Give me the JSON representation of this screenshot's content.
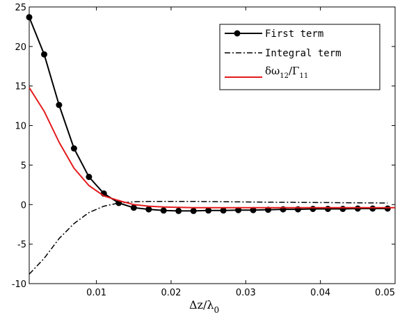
{
  "chart_data": {
    "type": "line",
    "xlim": [
      0.001,
      0.05
    ],
    "ylim": [
      -10,
      25
    ],
    "grid": false,
    "legend_position": "top-right",
    "xlabel": {
      "main": "Δz/λ",
      "sub": "0"
    },
    "x_ticks": [
      0.01,
      0.02,
      0.03,
      0.04,
      0.05
    ],
    "x_tick_labels": [
      "0.01",
      "0.02",
      "0.03",
      "0.04",
      "0.05"
    ],
    "y_ticks": [
      -10,
      -5,
      0,
      5,
      10,
      15,
      20,
      25
    ],
    "y_tick_labels": [
      "-10",
      "-5",
      "0",
      "5",
      "10",
      "15",
      "20",
      "25"
    ],
    "series": [
      {
        "name": "First term",
        "color": "#000000",
        "style": "solid-dot",
        "x": [
          0.001,
          0.003,
          0.005,
          0.007,
          0.009,
          0.011,
          0.013,
          0.015,
          0.017,
          0.019,
          0.021,
          0.023,
          0.025,
          0.027,
          0.029,
          0.031,
          0.033,
          0.035,
          0.037,
          0.039,
          0.041,
          0.043,
          0.045,
          0.047,
          0.049
        ],
        "y": [
          23.7,
          19.0,
          12.6,
          7.1,
          3.5,
          1.4,
          0.2,
          -0.4,
          -0.6,
          -0.75,
          -0.8,
          -0.8,
          -0.75,
          -0.75,
          -0.7,
          -0.7,
          -0.65,
          -0.6,
          -0.6,
          -0.55,
          -0.55,
          -0.55,
          -0.5,
          -0.5,
          -0.5
        ]
      },
      {
        "name": "Integral term",
        "color": "#000000",
        "style": "dashdot",
        "x": [
          0.001,
          0.003,
          0.005,
          0.007,
          0.009,
          0.011,
          0.013,
          0.015,
          0.017,
          0.019,
          0.021,
          0.023,
          0.025,
          0.027,
          0.029,
          0.031,
          0.033,
          0.035,
          0.037,
          0.039,
          0.041,
          0.043,
          0.045,
          0.047,
          0.049
        ],
        "y": [
          -8.8,
          -6.8,
          -4.3,
          -2.4,
          -1.0,
          -0.2,
          0.2,
          0.35,
          0.4,
          0.4,
          0.4,
          0.4,
          0.38,
          0.36,
          0.34,
          0.32,
          0.3,
          0.29,
          0.28,
          0.26,
          0.25,
          0.24,
          0.22,
          0.21,
          0.2
        ]
      },
      {
        "name": "δω12/Γ11",
        "color": "#e41a1c",
        "style": "solid",
        "x": [
          0.001,
          0.003,
          0.005,
          0.007,
          0.009,
          0.011,
          0.013,
          0.015,
          0.017,
          0.019,
          0.021,
          0.023,
          0.025,
          0.027,
          0.029,
          0.031,
          0.033,
          0.035,
          0.037,
          0.039,
          0.041,
          0.043,
          0.045,
          0.047,
          0.049,
          0.05
        ],
        "y": [
          14.8,
          11.8,
          7.9,
          4.6,
          2.4,
          1.1,
          0.5,
          0.0,
          -0.2,
          -0.3,
          -0.35,
          -0.4,
          -0.4,
          -0.4,
          -0.4,
          -0.4,
          -0.4,
          -0.4,
          -0.4,
          -0.4,
          -0.4,
          -0.4,
          -0.4,
          -0.4,
          -0.4,
          -0.4
        ]
      }
    ],
    "legend": [
      {
        "label": "First term"
      },
      {
        "label": "Integral term"
      },
      {
        "label_main": "δω",
        "label_sub1": "12",
        "label_mid": "/Γ",
        "label_sub2": "11"
      }
    ]
  }
}
